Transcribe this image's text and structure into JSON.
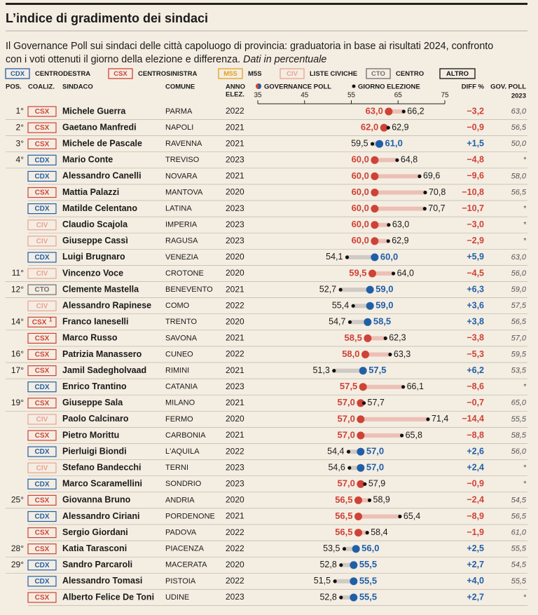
{
  "header": {
    "title": "L’indice di gradimento dei sindaci",
    "subtitle_lines": [
      "Il Governance Poll sui sindaci delle città capoluogo di provincia: graduatoria in base ai risultati 2024, confronto",
      "con i voti ottenuti il giorno della elezione e differenza."
    ],
    "note": "Dati in percentuale"
  },
  "legend": [
    {
      "code": "CDX",
      "label": "CENTRODESTRA",
      "color": "#1f5fa8"
    },
    {
      "code": "CSX",
      "label": "CENTROSINISTRA",
      "color": "#cf4236"
    },
    {
      "code": "M5S",
      "label": "M5S",
      "color": "#e3a21f"
    },
    {
      "code": "CIV",
      "label": "LISTE CIVICHE",
      "color": "#e9a393"
    },
    {
      "code": "CTO",
      "label": "CENTRO",
      "color": "#6f6f6f"
    },
    {
      "code": "ALTRO",
      "label": null,
      "color": "#111111"
    }
  ],
  "columns": {
    "pos": "POS.",
    "coal": "COALIZ.",
    "name": "SINDACO",
    "comune": "COMUNE",
    "anno": [
      "ANNO",
      "ELEZ."
    ],
    "gp": "GOVERNANCE POLL",
    "el": "GIORNO ELEZIONE",
    "diff": "DIFF %",
    "gp23": [
      "GOV. POLL",
      "2023"
    ]
  },
  "axis": {
    "xlim": [
      35,
      75
    ],
    "xticks": [
      35,
      45,
      55,
      65,
      75
    ],
    "higher_color": "#1f5fa8",
    "lower_color": "#cf4236"
  },
  "rows": [
    {
      "pos": "1°",
      "coal": "CSX",
      "name": "Michele Guerra",
      "comune": "PARMA",
      "anno": "2022",
      "gp": {
        "value": 63.0,
        "label": "63,0"
      },
      "el": {
        "value": 66.2,
        "label": "66,2"
      },
      "diff": "−3,2",
      "gp23": "63,0"
    },
    {
      "pos": "2°",
      "coal": "CSX",
      "name": "Gaetano Manfredi",
      "comune": "NAPOLI",
      "anno": "2021",
      "gp": {
        "value": 62.0,
        "label": "62,0"
      },
      "el": {
        "value": 62.9,
        "label": "62,9"
      },
      "diff": "−0,9",
      "gp23": "56,5"
    },
    {
      "pos": "3°",
      "coal": "CSX",
      "name": "Michele de Pascale",
      "comune": "RAVENNA",
      "anno": "2021",
      "gp": {
        "value": 61.0,
        "label": "61,0"
      },
      "el": {
        "value": 59.5,
        "label": "59,5"
      },
      "diff": "+1,5",
      "gp23": "50,0"
    },
    {
      "pos": "4°",
      "coal": "CDX",
      "name": "Mario Conte",
      "comune": "TREVISO",
      "anno": "2023",
      "gp": {
        "value": 60.0,
        "label": "60,0"
      },
      "el": {
        "value": 64.8,
        "label": "64,8"
      },
      "diff": "−4,8",
      "gp23": "*"
    },
    {
      "pos": null,
      "coal": "CDX",
      "name": "Alessandro Canelli",
      "comune": "NOVARA",
      "anno": "2021",
      "gp": {
        "value": 60.0,
        "label": "60,0"
      },
      "el": {
        "value": 69.6,
        "label": "69,6"
      },
      "diff": "−9,6",
      "gp23": "58,0"
    },
    {
      "pos": null,
      "coal": "CSX",
      "name": "Mattia Palazzi",
      "comune": "MANTOVA",
      "anno": "2020",
      "gp": {
        "value": 60.0,
        "label": "60,0"
      },
      "el": {
        "value": 70.8,
        "label": "70,8"
      },
      "diff": "−10,8",
      "gp23": "56,5"
    },
    {
      "pos": null,
      "coal": "CDX",
      "name": "Matilde Celentano",
      "comune": "LATINA",
      "anno": "2023",
      "gp": {
        "value": 60.0,
        "label": "60,0"
      },
      "el": {
        "value": 70.7,
        "label": "70,7"
      },
      "diff": "−10,7",
      "gp23": "*"
    },
    {
      "pos": null,
      "coal": "CIV",
      "name": "Claudio Scajola",
      "comune": "IMPERIA",
      "anno": "2023",
      "gp": {
        "value": 60.0,
        "label": "60,0"
      },
      "el": {
        "value": 63.0,
        "label": "63,0"
      },
      "diff": "−3,0",
      "gp23": "*"
    },
    {
      "pos": null,
      "coal": "CIV",
      "name": "Giuseppe Cassì",
      "comune": "RAGUSA",
      "anno": "2023",
      "gp": {
        "value": 60.0,
        "label": "60,0"
      },
      "el": {
        "value": 62.9,
        "label": "62,9"
      },
      "diff": "−2,9",
      "gp23": "*"
    },
    {
      "pos": null,
      "coal": "CDX",
      "name": "Luigi Brugnaro",
      "comune": "VENEZIA",
      "anno": "2020",
      "gp": {
        "value": 60.0,
        "label": "60,0"
      },
      "el": {
        "value": 54.1,
        "label": "54,1"
      },
      "diff": "+5,9",
      "gp23": "63,0"
    },
    {
      "pos": "11°",
      "coal": "CIV",
      "name": "Vincenzo Voce",
      "comune": "CROTONE",
      "anno": "2020",
      "gp": {
        "value": 59.5,
        "label": "59,5"
      },
      "el": {
        "value": 64.0,
        "label": "64,0"
      },
      "diff": "−4,5",
      "gp23": "56,0"
    },
    {
      "pos": "12°",
      "coal": "CTO",
      "name": "Clemente Mastella",
      "comune": "BENEVENTO",
      "anno": "2021",
      "gp": {
        "value": 59.0,
        "label": "59,0"
      },
      "el": {
        "value": 52.7,
        "label": "52,7"
      },
      "diff": "+6,3",
      "gp23": "59,0"
    },
    {
      "pos": null,
      "coal": "CIV",
      "name": "Alessandro Rapinese",
      "comune": "COMO",
      "anno": "2022",
      "gp": {
        "value": 59.0,
        "label": "59,0"
      },
      "el": {
        "value": 55.4,
        "label": "55,4"
      },
      "diff": "+3,6",
      "gp23": "57,5"
    },
    {
      "pos": "14°",
      "coal": "CSX",
      "footnote": "1",
      "name": "Franco Ianeselli",
      "comune": "TRENTO",
      "anno": "2020",
      "gp": {
        "value": 58.5,
        "label": "58,5"
      },
      "el": {
        "value": 54.7,
        "label": "54,7"
      },
      "diff": "+3,8",
      "gp23": "56,5"
    },
    {
      "pos": null,
      "coal": "CSX",
      "name": "Marco Russo",
      "comune": "SAVONA",
      "anno": "2021",
      "gp": {
        "value": 58.5,
        "label": "58,5"
      },
      "el": {
        "value": 62.3,
        "label": "62,3"
      },
      "diff": "−3,8",
      "gp23": "57,0"
    },
    {
      "pos": "16°",
      "coal": "CSX",
      "name": "Patrizia Manassero",
      "comune": "CUNEO",
      "anno": "2022",
      "gp": {
        "value": 58.0,
        "label": "58,0"
      },
      "el": {
        "value": 63.3,
        "label": "63,3"
      },
      "diff": "−5,3",
      "gp23": "59,5"
    },
    {
      "pos": "17°",
      "coal": "CSX",
      "name": "Jamil Sadegholvaad",
      "comune": "RIMINI",
      "anno": "2021",
      "gp": {
        "value": 57.5,
        "label": "57,5"
      },
      "el": {
        "value": 51.3,
        "label": "51,3"
      },
      "diff": "+6,2",
      "gp23": "53,5"
    },
    {
      "pos": null,
      "coal": "CDX",
      "name": "Enrico Trantino",
      "comune": "CATANIA",
      "anno": "2023",
      "gp": {
        "value": 57.5,
        "label": "57,5"
      },
      "el": {
        "value": 66.1,
        "label": "66,1"
      },
      "diff": "−8,6",
      "gp23": "*"
    },
    {
      "pos": "19°",
      "coal": "CSX",
      "name": "Giuseppe Sala",
      "comune": "MILANO",
      "anno": "2021",
      "gp": {
        "value": 57.0,
        "label": "57,0"
      },
      "el": {
        "value": 57.7,
        "label": "57,7"
      },
      "diff": "−0,7",
      "gp23": "65,0"
    },
    {
      "pos": null,
      "coal": "CIV",
      "name": "Paolo Calcinaro",
      "comune": "FERMO",
      "anno": "2020",
      "gp": {
        "value": 57.0,
        "label": "57,0"
      },
      "el": {
        "value": 71.4,
        "label": "71,4"
      },
      "diff": "−14,4",
      "gp23": "55,5"
    },
    {
      "pos": null,
      "coal": "CSX",
      "name": "Pietro Morittu",
      "comune": "CARBONIA",
      "anno": "2021",
      "gp": {
        "value": 57.0,
        "label": "57,0"
      },
      "el": {
        "value": 65.8,
        "label": "65,8"
      },
      "diff": "−8,8",
      "gp23": "58,5"
    },
    {
      "pos": null,
      "coal": "CDX",
      "name": "Pierluigi Biondi",
      "comune": "L'AQUILA",
      "anno": "2022",
      "gp": {
        "value": 57.0,
        "label": "57,0"
      },
      "el": {
        "value": 54.4,
        "label": "54,4"
      },
      "diff": "+2,6",
      "gp23": "56,0"
    },
    {
      "pos": null,
      "coal": "CIV",
      "name": "Stefano Bandecchi",
      "comune": "TERNI",
      "anno": "2023",
      "gp": {
        "value": 57.0,
        "label": "57,0"
      },
      "el": {
        "value": 54.6,
        "label": "54,6"
      },
      "diff": "+2,4",
      "gp23": "*"
    },
    {
      "pos": null,
      "coal": "CDX",
      "name": "Marco Scaramellini",
      "comune": "SONDRIO",
      "anno": "2023",
      "gp": {
        "value": 57.0,
        "label": "57,0"
      },
      "el": {
        "value": 57.9,
        "label": "57,9"
      },
      "diff": "−0,9",
      "gp23": "*"
    },
    {
      "pos": "25°",
      "coal": "CSX",
      "name": "Giovanna Bruno",
      "comune": "ANDRIA",
      "anno": "2020",
      "gp": {
        "value": 56.5,
        "label": "56,5"
      },
      "el": {
        "value": 58.9,
        "label": "58,9"
      },
      "diff": "−2,4",
      "gp23": "54,5"
    },
    {
      "pos": null,
      "coal": "CDX",
      "name": "Alessandro Ciriani",
      "comune": "PORDENONE",
      "anno": "2021",
      "gp": {
        "value": 56.5,
        "label": "56,5"
      },
      "el": {
        "value": 65.4,
        "label": "65,4"
      },
      "diff": "−8,9",
      "gp23": "56,5"
    },
    {
      "pos": null,
      "coal": "CSX",
      "name": "Sergio Giordani",
      "comune": "PADOVA",
      "anno": "2022",
      "gp": {
        "value": 56.5,
        "label": "56,5"
      },
      "el": {
        "value": 58.4,
        "label": "58,4"
      },
      "diff": "−1,9",
      "gp23": "61,0"
    },
    {
      "pos": "28°",
      "coal": "CSX",
      "name": "Katia Tarasconi",
      "comune": "PIACENZA",
      "anno": "2022",
      "gp": {
        "value": 56.0,
        "label": "56,0"
      },
      "el": {
        "value": 53.5,
        "label": "53,5"
      },
      "diff": "+2,5",
      "gp23": "55,5"
    },
    {
      "pos": "29°",
      "coal": "CDX",
      "name": "Sandro Parcaroli",
      "comune": "MACERATA",
      "anno": "2020",
      "gp": {
        "value": 55.5,
        "label": "55,5"
      },
      "el": {
        "value": 52.8,
        "label": "52,8"
      },
      "diff": "+2,7",
      "gp23": "54,5"
    },
    {
      "pos": null,
      "coal": "CDX",
      "name": "Alessandro Tomasi",
      "comune": "PISTOIA",
      "anno": "2022",
      "gp": {
        "value": 55.5,
        "label": "55,5"
      },
      "el": {
        "value": 51.5,
        "label": "51,5"
      },
      "diff": "+4,0",
      "gp23": "55,5"
    },
    {
      "pos": null,
      "coal": "CSX",
      "name": "Alberto Felice De Toni",
      "comune": "UDINE",
      "anno": "2023",
      "gp": {
        "value": 55.5,
        "label": "55,5"
      },
      "el": {
        "value": 52.8,
        "label": "52,8"
      },
      "diff": "+2,7",
      "gp23": "*"
    }
  ]
}
